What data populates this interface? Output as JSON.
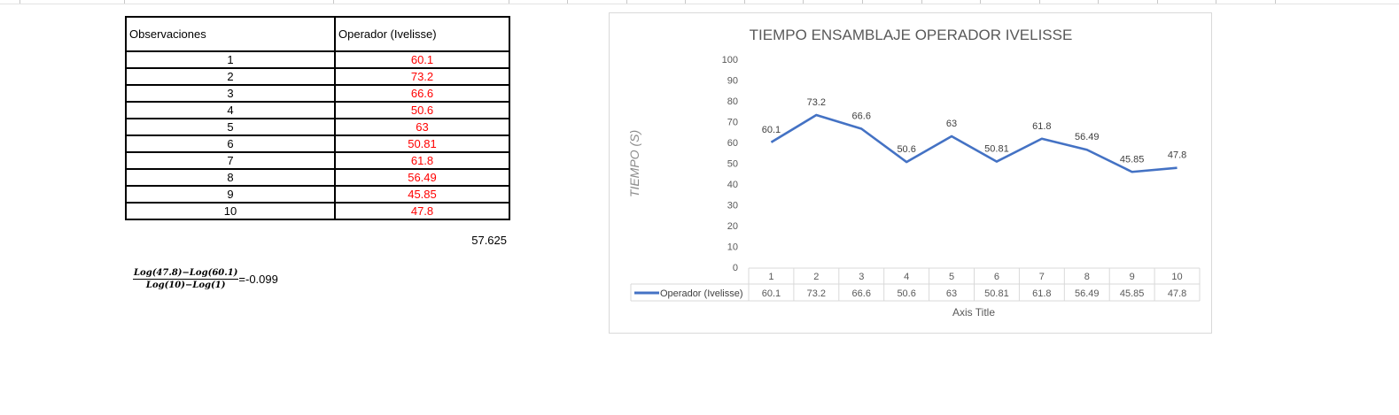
{
  "table": {
    "header_observations": "Observaciones",
    "header_operator": "Operador (Ivelisse)",
    "rows": [
      {
        "obs": "1",
        "value": "60.1"
      },
      {
        "obs": "2",
        "value": "73.2"
      },
      {
        "obs": "3",
        "value": "66.6"
      },
      {
        "obs": "4",
        "value": "50.6"
      },
      {
        "obs": "5",
        "value": "63"
      },
      {
        "obs": "6",
        "value": "50.81"
      },
      {
        "obs": "7",
        "value": "61.8"
      },
      {
        "obs": "8",
        "value": "56.49"
      },
      {
        "obs": "9",
        "value": "45.85"
      },
      {
        "obs": "10",
        "value": "47.8"
      }
    ],
    "average": "57.625"
  },
  "formula": {
    "numerator": "Log(47.8)−Log(60.1)",
    "denominator": "Log(10)−Log(1)",
    "result": "=-0.099"
  },
  "colors": {
    "series": "#4472c4",
    "value_text": "#ff0000"
  },
  "chart_data": {
    "type": "line",
    "title": "TIEMPO ENSAMBLAJE OPERADOR IVELISSE",
    "ylabel": "TIEMPO (S)",
    "xlabel": "Axis Title",
    "ylim": [
      0,
      100
    ],
    "yticks": [
      0,
      10,
      20,
      30,
      40,
      50,
      60,
      70,
      80,
      90,
      100
    ],
    "categories": [
      "1",
      "2",
      "3",
      "4",
      "5",
      "6",
      "7",
      "8",
      "9",
      "10"
    ],
    "series": [
      {
        "name": "Operador (Ivelisse)",
        "values": [
          60.1,
          73.2,
          66.6,
          50.6,
          63,
          50.81,
          61.8,
          56.49,
          45.85,
          47.8
        ]
      }
    ],
    "data_table": true,
    "grid": false
  }
}
